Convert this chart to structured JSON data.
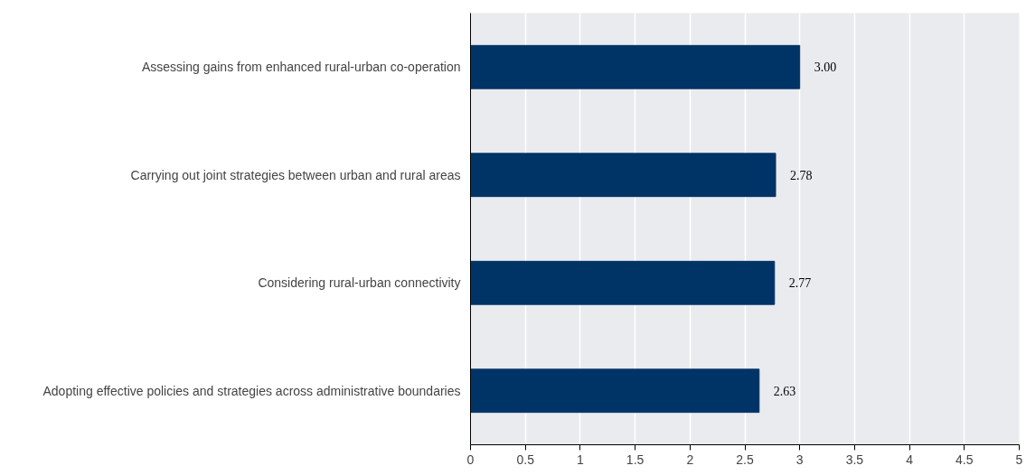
{
  "chart_data": {
    "type": "bar",
    "orientation": "horizontal",
    "categories": [
      "Assessing gains from enhanced rural-urban co-operation",
      "Carrying out joint strategies between urban and rural areas",
      "Considering rural-urban connectivity",
      "Adopting effective policies and strategies across administrative boundaries"
    ],
    "values": [
      3.0,
      2.78,
      2.77,
      2.63
    ],
    "value_labels": [
      "3.00",
      "2.78",
      "2.77",
      "2.63"
    ],
    "color": "#003366",
    "xlim": [
      0,
      5
    ],
    "xticks": [
      0,
      0.5,
      1,
      1.5,
      2,
      2.5,
      3,
      3.5,
      4,
      4.5,
      5
    ],
    "grid": "x"
  }
}
